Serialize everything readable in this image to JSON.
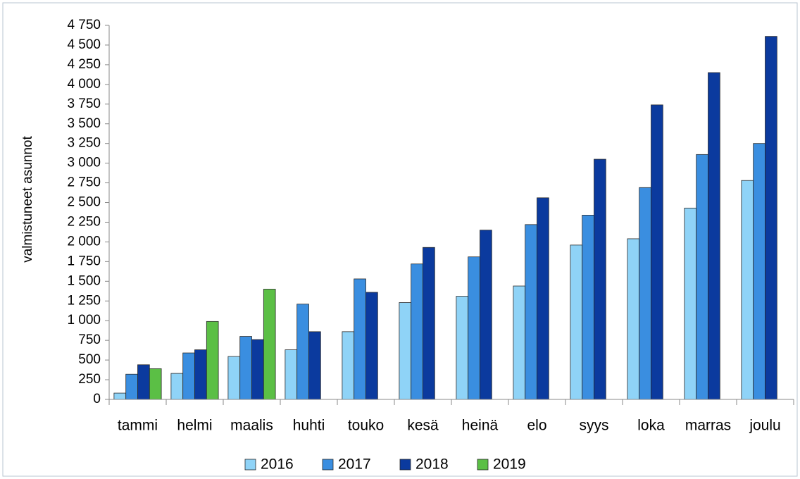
{
  "chart_data": {
    "type": "bar",
    "y_label": "valmistuneet asunnot",
    "categories": [
      "tammi",
      "helmi",
      "maalis",
      "huhti",
      "touko",
      "kesä",
      "heinä",
      "elo",
      "syys",
      "loka",
      "marras",
      "joulu"
    ],
    "series": [
      {
        "name": "2016",
        "color": "#8fd3f7",
        "values": [
          80,
          330,
          545,
          630,
          860,
          1230,
          1310,
          1440,
          1960,
          2040,
          2430,
          2780
        ]
      },
      {
        "name": "2017",
        "color": "#3a8ee0",
        "values": [
          320,
          590,
          800,
          1210,
          1530,
          1720,
          1810,
          2220,
          2340,
          2690,
          3110,
          3250
        ]
      },
      {
        "name": "2018",
        "color": "#0b3a9e",
        "values": [
          440,
          630,
          760,
          860,
          1360,
          1930,
          2150,
          2560,
          3050,
          3740,
          4150,
          4610
        ]
      },
      {
        "name": "2019",
        "color": "#5bbf45",
        "values": [
          390,
          990,
          1400,
          null,
          null,
          null,
          null,
          null,
          null,
          null,
          null,
          null
        ]
      }
    ],
    "ylim": [
      0,
      4750
    ],
    "yticks": [
      0,
      250,
      500,
      750,
      {
        "value": 1000,
        "label": "1 000"
      },
      {
        "value": 1250,
        "label": "1 250"
      },
      {
        "value": 1500,
        "label": "1 500"
      },
      {
        "value": 1750,
        "label": "1 750"
      },
      {
        "value": 2000,
        "label": "2 000"
      },
      {
        "value": 2250,
        "label": "2 250"
      },
      {
        "value": 2500,
        "label": "2 500"
      },
      {
        "value": 2750,
        "label": "2 750"
      },
      {
        "value": 3000,
        "label": "3 000"
      },
      {
        "value": 3250,
        "label": "3 250"
      },
      {
        "value": 3500,
        "label": "3 500"
      },
      {
        "value": 3750,
        "label": "3 750"
      },
      {
        "value": 4000,
        "label": "4 000"
      },
      {
        "value": 4250,
        "label": "4 250"
      },
      {
        "value": 4500,
        "label": "4 500"
      },
      {
        "value": 4750,
        "label": "4 750"
      }
    ],
    "grid": false,
    "legend": "bottom"
  }
}
